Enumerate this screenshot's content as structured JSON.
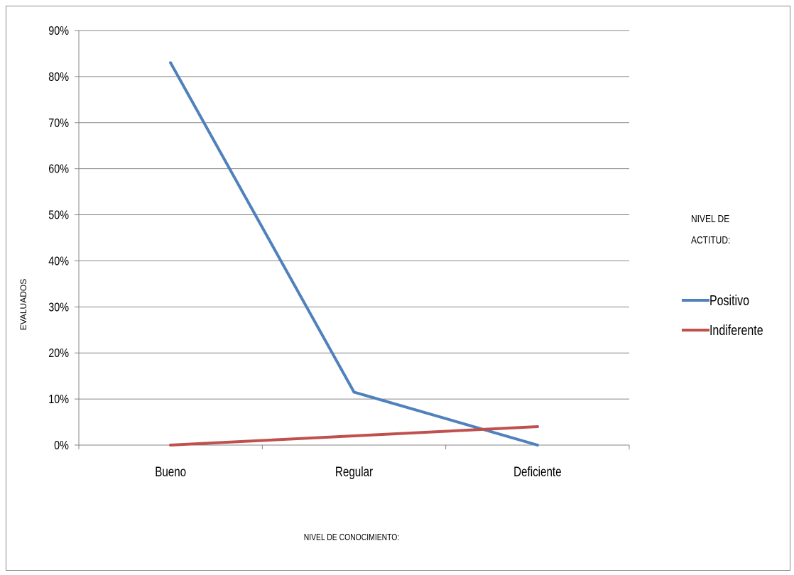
{
  "chart_data": {
    "type": "line",
    "categories": [
      "Bueno",
      "Regular",
      "Deficiente"
    ],
    "series": [
      {
        "name": "Positivo",
        "values": [
          83,
          11.5,
          0
        ],
        "color": "#4F81BD"
      },
      {
        "name": "Indiferente",
        "values": [
          0,
          2,
          4
        ],
        "color": "#C0504D"
      }
    ],
    "y_ticks": [
      "0%",
      "10%",
      "20%",
      "30%",
      "40%",
      "50%",
      "60%",
      "70%",
      "80%",
      "90%"
    ],
    "ylim": [
      0,
      90
    ],
    "xlabel": "NIVEL DE CONOCIMIENTO:",
    "ylabel": "EVALUADOS",
    "legend_title": "NIVEL DE ACTITUD:",
    "legend_position": "right",
    "grid": true,
    "gridline_color": "#868686"
  }
}
